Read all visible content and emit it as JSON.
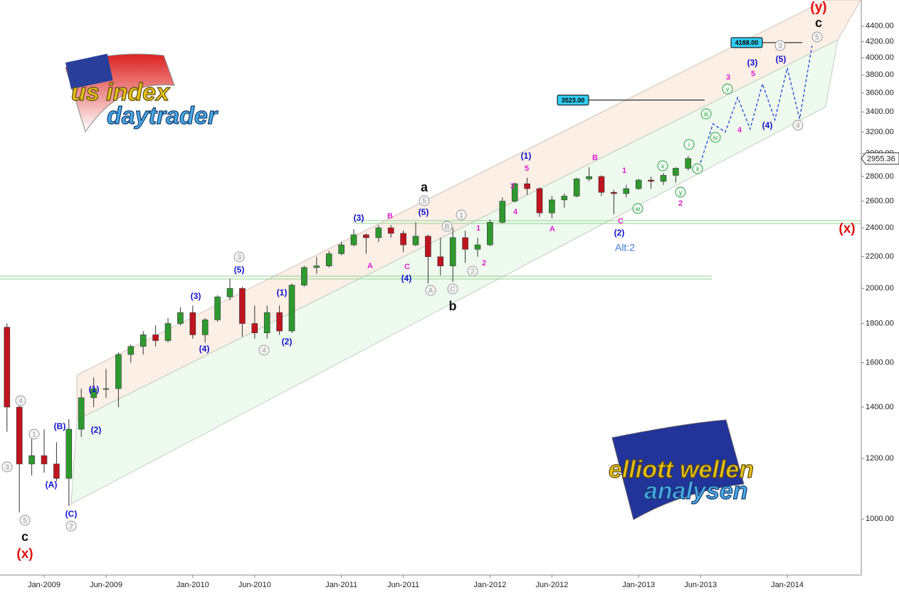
{
  "chart_data": {
    "type": "candlestick",
    "log_scale": true,
    "x": [
      "Oct-2008",
      "Nov-2008",
      "Dec-2008",
      "Jan-2009",
      "Feb-2009",
      "Mar-2009",
      "Apr-2009",
      "May-2009",
      "Jun-2009",
      "Jul-2009",
      "Aug-2009",
      "Sep-2009",
      "Oct-2009",
      "Nov-2009",
      "Dec-2009",
      "Jan-2010",
      "Feb-2010",
      "Mar-2010",
      "Apr-2010",
      "May-2010",
      "Jun-2010",
      "Jul-2010",
      "Aug-2010",
      "Sep-2010",
      "Oct-2010",
      "Nov-2010",
      "Dec-2010",
      "Jan-2011",
      "Feb-2011",
      "Mar-2011",
      "Apr-2011",
      "May-2011",
      "Jun-2011",
      "Jul-2011",
      "Aug-2011",
      "Sep-2011",
      "Oct-2011",
      "Nov-2011",
      "Dec-2011",
      "Jan-2012",
      "Feb-2012",
      "Mar-2012",
      "Apr-2012",
      "May-2012",
      "Jun-2012",
      "Jul-2012",
      "Aug-2012",
      "Sep-2012",
      "Oct-2012",
      "Nov-2012",
      "Dec-2012",
      "Jan-2013",
      "Feb-2013",
      "Mar-2013",
      "Apr-2013",
      "May-2013",
      "Jun-2013",
      "Jul-2013",
      "Aug-2013",
      "Sep-2013",
      "Oct-2013",
      "Nov-2013",
      "Dec-2013",
      "Jan-2014",
      "Feb-2014",
      "Mar-2014"
    ],
    "open": [
      1780,
      1400,
      1180,
      1210,
      1180,
      1130,
      1310,
      1440,
      1480,
      1480,
      1640,
      1680,
      1740,
      1710,
      1800,
      1860,
      1740,
      1820,
      1950,
      2000,
      1800,
      1750,
      1860,
      1760,
      2020,
      2130,
      2140,
      2220,
      2280,
      2350,
      2330,
      2400,
      2360,
      2280,
      2340,
      2200,
      2140,
      2330,
      2250,
      2280,
      2440,
      2600,
      2740,
      2700,
      2510,
      2610,
      2640,
      2780,
      2800,
      2670,
      2660,
      2700,
      2770,
      2760,
      2810,
      2870,
      null,
      null,
      null,
      null,
      null,
      null,
      null,
      null,
      null,
      null
    ],
    "high": [
      1800,
      1440,
      1280,
      1310,
      1260,
      1350,
      1480,
      1530,
      1570,
      1650,
      1690,
      1760,
      1790,
      1830,
      1890,
      1900,
      1830,
      1960,
      2060,
      2010,
      1900,
      1900,
      1900,
      2030,
      2140,
      2200,
      2240,
      2300,
      2390,
      2360,
      2420,
      2420,
      2380,
      2440,
      2350,
      2330,
      2400,
      2380,
      2330,
      2460,
      2630,
      2750,
      2790,
      2710,
      2640,
      2660,
      2790,
      2880,
      2810,
      2690,
      2730,
      2780,
      2800,
      2830,
      2880,
      2980,
      null,
      null,
      null,
      null,
      null,
      null,
      null,
      null,
      null,
      null
    ],
    "low": [
      1300,
      1020,
      1140,
      1150,
      1120,
      1040,
      1280,
      1400,
      1440,
      1400,
      1600,
      1640,
      1680,
      1700,
      1790,
      1720,
      1700,
      1810,
      1930,
      1730,
      1720,
      1720,
      1740,
      1750,
      2010,
      2090,
      2130,
      2210,
      2270,
      2220,
      2300,
      2330,
      2230,
      2270,
      2030,
      2080,
      2040,
      2160,
      2200,
      2270,
      2430,
      2590,
      2650,
      2480,
      2470,
      2550,
      2630,
      2760,
      2640,
      2500,
      2630,
      2690,
      2700,
      2730,
      2750,
      2850,
      null,
      null,
      null,
      null,
      null,
      null,
      null,
      null,
      null,
      null
    ],
    "close": [
      1400,
      1180,
      1210,
      1180,
      1130,
      1310,
      1440,
      1480,
      1480,
      1640,
      1680,
      1740,
      1710,
      1800,
      1860,
      1740,
      1820,
      1950,
      2000,
      1800,
      1750,
      1860,
      1760,
      2020,
      2130,
      2140,
      2220,
      2280,
      2350,
      2330,
      2400,
      2360,
      2280,
      2340,
      2200,
      2140,
      2330,
      2250,
      2280,
      2440,
      2600,
      2740,
      2700,
      2510,
      2610,
      2640,
      2780,
      2800,
      2670,
      2660,
      2700,
      2770,
      2760,
      2810,
      2870,
      2955.36,
      null,
      null,
      null,
      null,
      null,
      null,
      null,
      null,
      null,
      null
    ],
    "projection": [
      null,
      null,
      null,
      null,
      null,
      null,
      null,
      null,
      null,
      null,
      null,
      null,
      null,
      null,
      null,
      null,
      null,
      null,
      null,
      null,
      null,
      null,
      null,
      null,
      null,
      null,
      null,
      null,
      null,
      null,
      null,
      null,
      null,
      null,
      null,
      null,
      null,
      null,
      null,
      null,
      null,
      null,
      null,
      null,
      null,
      null,
      null,
      null,
      null,
      null,
      null,
      null,
      null,
      null,
      null,
      null,
      2920,
      3280,
      3200,
      3550,
      3230,
      3700,
      3320,
      3880,
      3330,
      4150
    ],
    "up_color": "#2e9a2e",
    "down_color": "#c0141e",
    "projection_color": "#1f3fd8",
    "ylim": [
      845,
      4760
    ],
    "yticks": [
      {
        "value": 1000,
        "label": "1000.00"
      },
      {
        "value": 1200,
        "label": "1200.00"
      },
      {
        "value": 1400,
        "label": "1400.00"
      },
      {
        "value": 1600,
        "label": "1600.00"
      },
      {
        "value": 1800,
        "label": "1800.00"
      },
      {
        "value": 2000,
        "label": "2000.00"
      },
      {
        "value": 2200,
        "label": "2200.00"
      },
      {
        "value": 2400,
        "label": "2400.00"
      },
      {
        "value": 2600,
        "label": "2600.00"
      },
      {
        "value": 2800,
        "label": "2800.00"
      },
      {
        "value": 3000,
        "label": "3000.00"
      },
      {
        "value": 3200,
        "label": "3200.00"
      },
      {
        "value": 3400,
        "label": "3400.00"
      },
      {
        "value": 3600,
        "label": "3600.00"
      },
      {
        "value": 3800,
        "label": "3800.00"
      },
      {
        "value": 4000,
        "label": "4000.00"
      },
      {
        "value": 4200,
        "label": "4200.00"
      },
      {
        "value": 4400,
        "label": "4400.00"
      }
    ],
    "xticks": [
      "Jan-2009",
      "Jun-2009",
      "Jan-2010",
      "Jun-2010",
      "Jan-2011",
      "Jun-2011",
      "Jan-2012",
      "Jun-2012",
      "Jan-2013",
      "Jun-2013",
      "Jan-2014"
    ],
    "price_levels": [
      {
        "value": 4188,
        "label": "4188.00"
      },
      {
        "value": 3523,
        "label": "3523.00"
      }
    ],
    "last_price": {
      "value": 2955.36,
      "label": "2955.36"
    },
    "annotations": [
      "c",
      "(x)",
      "a",
      "b",
      "c",
      "(y)",
      "(x)",
      "(C)",
      "(A)",
      "(B)",
      "(1)",
      "(2)",
      "(3)",
      "(4)",
      "(5)",
      "(1)",
      "(2)",
      "(3)",
      "(5)",
      "(4)",
      "(1)",
      "(2)",
      "(3)",
      "(4)",
      "(5)",
      "Alt:2",
      "B",
      "A",
      "C",
      "1",
      "2",
      "3",
      "4",
      "5",
      "A",
      "B",
      "1",
      "C",
      "2",
      "3",
      "4",
      "5",
      "5",
      "3",
      "4",
      "1",
      "2",
      "3",
      "4",
      "5",
      "1",
      "B",
      "A",
      "C",
      "2",
      "3",
      "5",
      "4",
      "i",
      "ii",
      "iii",
      "iv",
      "v",
      "x",
      "w",
      "y"
    ],
    "logos": [
      "us index",
      "daytrader",
      "elliott wellen",
      "analysen"
    ]
  }
}
